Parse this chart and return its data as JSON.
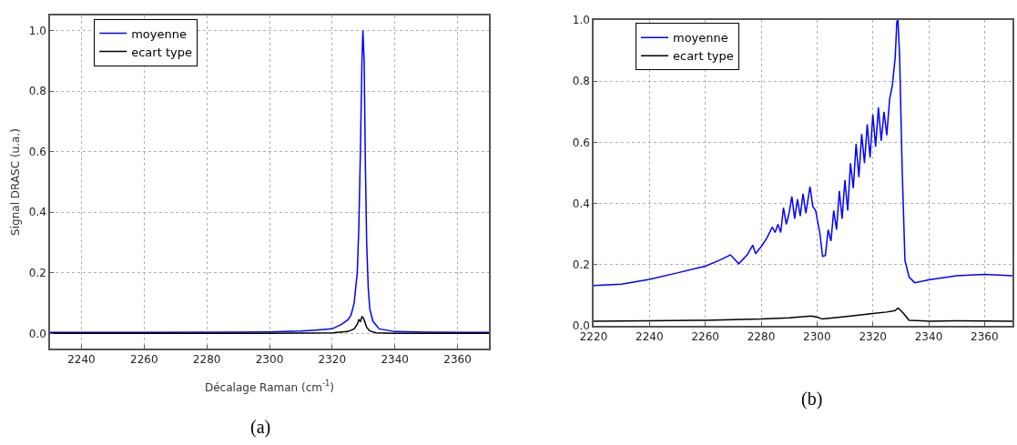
{
  "chart_data": [
    {
      "type": "line",
      "xlabel": "Décalage Raman (cm$^{-1}$)",
      "ylabel": "Signal DRASC (u.a.)",
      "annotations": [
        "(a)"
      ],
      "xlim": [
        2230,
        2370
      ],
      "xticks": [
        2240,
        2260,
        2280,
        2300,
        2320,
        2340,
        2360
      ],
      "ylim": [
        -0.05,
        1.05
      ],
      "yticks": [
        {
          "value": 0,
          "label": "0.0"
        },
        {
          "value": 0.2,
          "label": "0.2"
        },
        {
          "value": 0.4,
          "label": "0.4"
        },
        {
          "value": 0.6,
          "label": "0.6"
        },
        {
          "value": 0.8,
          "label": "0.8"
        },
        {
          "value": 1,
          "label": "1.0"
        }
      ],
      "grid": true,
      "legend": "top left",
      "marker": "none",
      "line_style": "solid",
      "series": [
        {
          "name": "moyenne",
          "color": "#0000ff",
          "x": [
            2230,
            2260,
            2290,
            2300,
            2310,
            2315,
            2320,
            2323,
            2325,
            2326,
            2327,
            2328,
            2328.5,
            2329,
            2329.5,
            2329.8,
            2330.2,
            2330.6,
            2331,
            2331.5,
            2332,
            2333,
            2335,
            2340,
            2350,
            2370
          ],
          "values": [
            0.003,
            0.003,
            0.004,
            0.005,
            0.008,
            0.011,
            0.015,
            0.03,
            0.045,
            0.06,
            0.1,
            0.2,
            0.35,
            0.6,
            0.9,
            1.0,
            0.9,
            0.55,
            0.3,
            0.15,
            0.08,
            0.04,
            0.015,
            0.006,
            0.004,
            0.003
          ]
        },
        {
          "name": "ecart type",
          "color": "#000000",
          "x": [
            2230,
            2300,
            2320,
            2325,
            2327,
            2328,
            2328.5,
            2329,
            2329.5,
            2330,
            2330.5,
            2331,
            2332,
            2334,
            2340,
            2370
          ],
          "values": [
            0,
            0,
            0.002,
            0.006,
            0.015,
            0.03,
            0.045,
            0.04,
            0.055,
            0.05,
            0.035,
            0.02,
            0.008,
            0.002,
            0,
            0
          ]
        }
      ]
    },
    {
      "type": "line",
      "annotations": [
        "(b)"
      ],
      "xlim": [
        2220,
        2370
      ],
      "xticks": [
        2220,
        2240,
        2260,
        2280,
        2300,
        2320,
        2340,
        2360
      ],
      "ylim": [
        0,
        1
      ],
      "yticks": [
        {
          "value": 0,
          "label": "0.0"
        },
        {
          "value": 0.2,
          "label": "0.2"
        },
        {
          "value": 0.4,
          "label": "0.4"
        },
        {
          "value": 0.6,
          "label": "0.6"
        },
        {
          "value": 0.8,
          "label": "0.8"
        },
        {
          "value": 1,
          "label": "1.0"
        }
      ],
      "grid": true,
      "legend": "top left",
      "marker": "none",
      "line_style": "solid",
      "series": [
        {
          "name": "moyenne",
          "color": "#0000ff",
          "x": [
            2220,
            2230,
            2240,
            2250,
            2260,
            2265,
            2269,
            2272,
            2275,
            2277,
            2278,
            2280,
            2282,
            2284,
            2285,
            2286,
            2287,
            2288,
            2289,
            2290,
            2291,
            2292,
            2293,
            2294,
            2295,
            2296,
            2297.5,
            2298.5,
            2299.5,
            2301,
            2302,
            2303,
            2304,
            2305,
            2306,
            2307,
            2308,
            2309,
            2310,
            2311,
            2312,
            2313,
            2314,
            2315,
            2316,
            2317,
            2318,
            2319,
            2320,
            2321,
            2322,
            2323,
            2324,
            2325,
            2326,
            2327,
            2328,
            2328.6,
            2329,
            2329.6,
            2330.5,
            2331.5,
            2333,
            2335,
            2340,
            2350,
            2360,
            2370
          ],
          "values": [
            0.132,
            0.136,
            0.152,
            0.173,
            0.195,
            0.214,
            0.232,
            0.203,
            0.232,
            0.264,
            0.236,
            0.259,
            0.286,
            0.323,
            0.305,
            0.332,
            0.305,
            0.386,
            0.332,
            0.368,
            0.423,
            0.35,
            0.414,
            0.359,
            0.432,
            0.368,
            0.455,
            0.39,
            0.377,
            0.305,
            0.227,
            0.23,
            0.314,
            0.277,
            0.377,
            0.314,
            0.441,
            0.35,
            0.477,
            0.377,
            0.532,
            0.45,
            0.595,
            0.486,
            0.627,
            0.532,
            0.659,
            0.55,
            0.691,
            0.586,
            0.714,
            0.605,
            0.7,
            0.623,
            0.741,
            0.786,
            0.877,
            0.995,
            1.0,
            0.877,
            0.514,
            0.214,
            0.159,
            0.141,
            0.15,
            0.164,
            0.168,
            0.164
          ]
        },
        {
          "name": "ecart type",
          "color": "#000000",
          "x": [
            2220,
            2240,
            2260,
            2280,
            2290,
            2295,
            2298,
            2300,
            2302,
            2305,
            2310,
            2315,
            2320,
            2325,
            2328,
            2329,
            2330,
            2331,
            2333,
            2340,
            2350,
            2370
          ],
          "values": [
            0.015,
            0.016,
            0.018,
            0.022,
            0.026,
            0.03,
            0.032,
            0.028,
            0.022,
            0.025,
            0.03,
            0.035,
            0.04,
            0.045,
            0.05,
            0.058,
            0.05,
            0.04,
            0.018,
            0.015,
            0.016,
            0.015
          ]
        }
      ]
    }
  ]
}
